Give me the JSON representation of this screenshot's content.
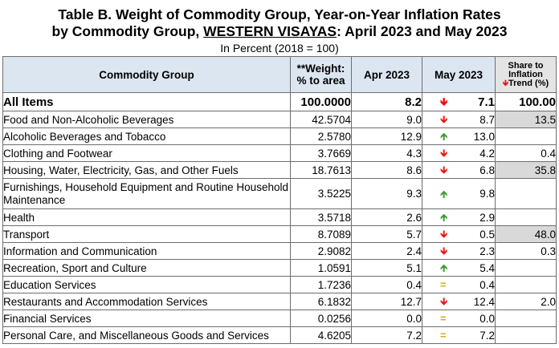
{
  "title": {
    "line1": "Table B. Weight of Commodity Group, Year-on-Year Inflation Rates",
    "line2_prefix": "by Commodity Group, ",
    "region": "WESTERN VISAYAS",
    "line2_suffix": ": April 2023 and May 2023"
  },
  "subtitle": "In Percent (2018 = 100)",
  "headers": {
    "group": "Commodity Group",
    "weight_line1": "**Weight:",
    "weight_line2": "% to area",
    "apr": "Apr 2023",
    "may": "May 2023",
    "share_line1": "Share to",
    "share_line2": "Inflation",
    "share_line3": "Trend (%)"
  },
  "colors": {
    "down": "#ee1111",
    "up": "#3c9a31",
    "equal": "#e1a70e",
    "header_bg": "#dce6f1",
    "highlight_bg": "#d9d9d9"
  },
  "rows": [
    {
      "group": "All Items",
      "weight": "100.0000",
      "apr": "8.2",
      "trend": "down",
      "may": "7.1",
      "share": "100.00"
    },
    {
      "group": "Food and Non-Alcoholic Beverages",
      "weight": "42.5704",
      "apr": "9.0",
      "trend": "down",
      "may": "8.7",
      "share": "13.5"
    },
    {
      "group": "Alcoholic Beverages and Tobacco",
      "weight": "2.5780",
      "apr": "12.9",
      "trend": "up",
      "may": "13.0",
      "share": ""
    },
    {
      "group": "Clothing and Footwear",
      "weight": "3.7669",
      "apr": "4.3",
      "trend": "down",
      "may": "4.2",
      "share": "0.4"
    },
    {
      "group": "Housing, Water, Electricity, Gas, and Other Fuels",
      "weight": "18.7613",
      "apr": "8.6",
      "trend": "down",
      "may": "6.8",
      "share": "35.8"
    },
    {
      "group": "Furnishings, Household Equipment and Routine Household Maintenance",
      "weight": "3.5225",
      "apr": "9.3",
      "trend": "up",
      "may": "9.8",
      "share": ""
    },
    {
      "group": "Health",
      "weight": "3.5718",
      "apr": "2.6",
      "trend": "up",
      "may": "2.9",
      "share": ""
    },
    {
      "group": "Transport",
      "weight": "8.7089",
      "apr": "5.7",
      "trend": "down",
      "may": "0.5",
      "share": "48.0"
    },
    {
      "group": "Information and Communication",
      "weight": "2.9082",
      "apr": "2.4",
      "trend": "down",
      "may": "2.3",
      "share": "0.3"
    },
    {
      "group": "Recreation, Sport and Culture",
      "weight": "1.0591",
      "apr": "5.1",
      "trend": "up",
      "may": "5.4",
      "share": ""
    },
    {
      "group": "Education Services",
      "weight": "1.7236",
      "apr": "0.4",
      "trend": "equal",
      "may": "0.4",
      "share": ""
    },
    {
      "group": "Restaurants and Accommodation Services",
      "weight": "6.1832",
      "apr": "12.7",
      "trend": "down",
      "may": "12.4",
      "share": "2.0"
    },
    {
      "group": "Financial Services",
      "weight": "0.0256",
      "apr": "0.0",
      "trend": "equal",
      "may": "0.0",
      "share": ""
    },
    {
      "group": "Personal Care, and Miscellaneous Goods and Services",
      "weight": "4.6205",
      "apr": "7.2",
      "trend": "equal",
      "may": "7.2",
      "share": ""
    }
  ]
}
